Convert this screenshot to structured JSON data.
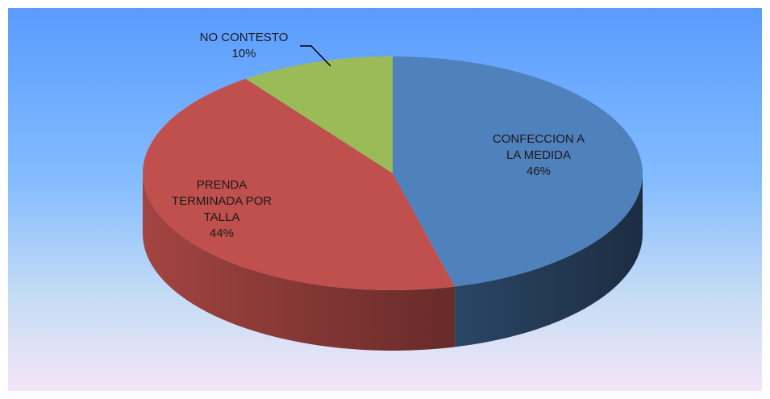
{
  "chart_data": {
    "type": "pie3d",
    "categories": [
      "CONFECCION A LA MEDIDA",
      "PRENDA TERMINADA POR TALLA",
      "NO CONTESTO"
    ],
    "values": [
      46,
      44,
      10
    ],
    "value_labels": [
      "46%",
      "44%",
      "10%"
    ],
    "colors": [
      "#4f81bd",
      "#c0504d",
      "#9bbb59"
    ]
  }
}
